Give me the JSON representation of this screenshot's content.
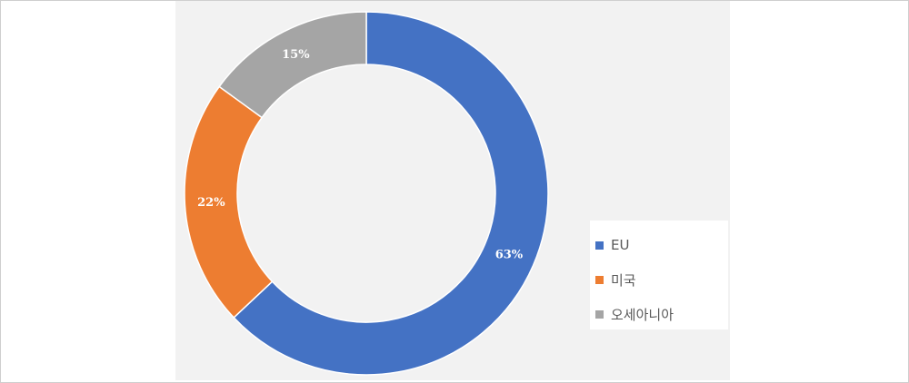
{
  "chart_data": {
    "type": "pie",
    "donut": true,
    "categories": [
      "EU",
      "미국",
      "오세아니아"
    ],
    "values": [
      63,
      22,
      15
    ],
    "labels": [
      "63%",
      "22%",
      "15%"
    ],
    "colors": [
      "#4472c4",
      "#ed7d31",
      "#a5a5a5"
    ],
    "legend_position": "bottom-right"
  }
}
